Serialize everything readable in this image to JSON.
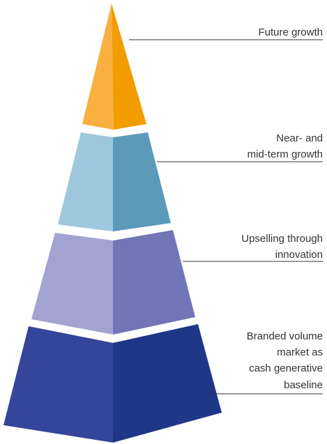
{
  "tiers": [
    {
      "label": [
        "Future growth"
      ]
    },
    {
      "label": [
        "Near- and",
        "mid-term growth"
      ]
    },
    {
      "label": [
        "Upselling through",
        "innovation"
      ]
    },
    {
      "label": [
        "Branded volume",
        "market as",
        "cash generative",
        "baseline"
      ]
    }
  ]
}
